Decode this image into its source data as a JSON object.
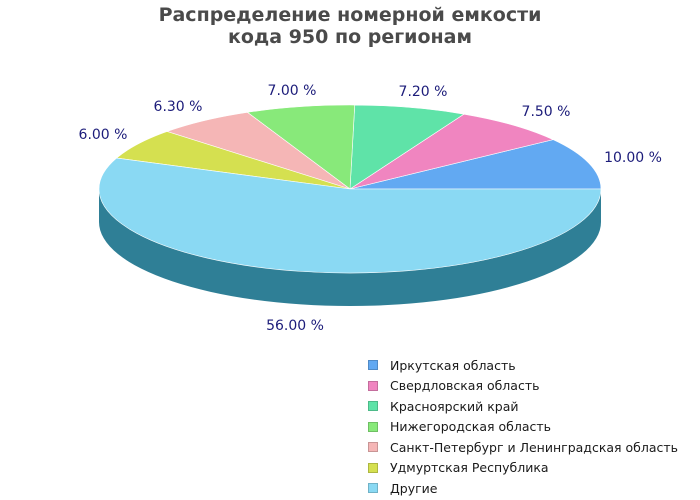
{
  "chart_data": {
    "type": "pie",
    "title_lines": [
      "Распределение номерной емкости",
      "кода 950 по регионам"
    ],
    "slices": [
      {
        "name": "Иркутская область",
        "value": 10.0,
        "label": "10.00 %",
        "color": "#62a9f2"
      },
      {
        "name": "Свердловская область",
        "value": 7.5,
        "label": "7.50 %",
        "color": "#f085c0"
      },
      {
        "name": "Красноярский край",
        "value": 7.2,
        "label": "7.20 %",
        "color": "#5fe3a8"
      },
      {
        "name": "Нижегородская область",
        "value": 7.0,
        "label": "7.00 %",
        "color": "#88e97a"
      },
      {
        "name": "Санкт-Петербург и Ленинградская область",
        "value": 6.3,
        "label": "6.30 %",
        "color": "#f5b6b6"
      },
      {
        "name": "Удмуртская Республика",
        "value": 6.0,
        "label": "6.00 %",
        "color": "#d5e050"
      },
      {
        "name": "Другие",
        "value": 56.0,
        "label": "56.00 %",
        "color": "#8ad9f3"
      }
    ],
    "side_color": "#2f7f96",
    "label_color": "#1c1c7a",
    "legend_position": "bottom-right"
  }
}
